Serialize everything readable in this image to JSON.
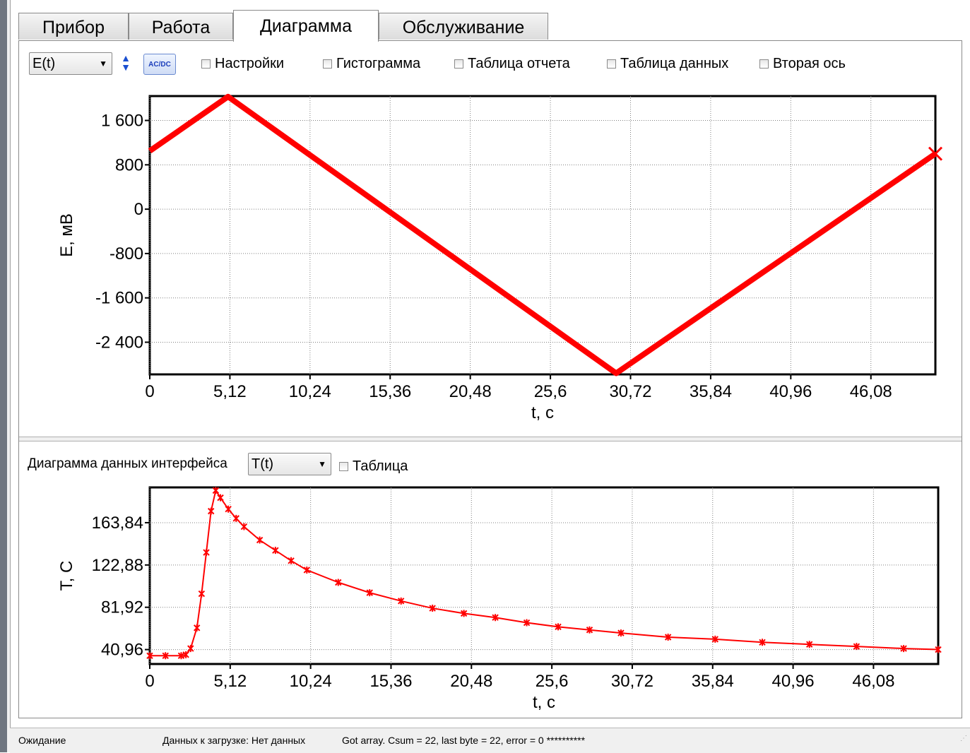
{
  "tabs": [
    {
      "label": "Прибор"
    },
    {
      "label": "Работа"
    },
    {
      "label": "Диаграмма",
      "active": true
    },
    {
      "label": "Обслуживание"
    }
  ],
  "toolbar": {
    "mode_select": "E(t)",
    "acdc_label": "AC/DC",
    "checkboxes": [
      {
        "label": "Настройки",
        "checked": false
      },
      {
        "label": "Гистограмма",
        "checked": false
      },
      {
        "label": "Таблица отчета",
        "checked": false
      },
      {
        "label": "Таблица данных",
        "checked": false
      },
      {
        "label": "Вторая ось",
        "checked": false
      }
    ]
  },
  "lower": {
    "label": "Диаграмма данных интерфейса",
    "select": "T(t)",
    "table_checkbox": "Таблица"
  },
  "status": {
    "state": "Ожидание",
    "download": "Данных к загрузке: Нет данных",
    "message": "Got array. Csum = 22, last byte = 22, error = 0 **********"
  },
  "colors": {
    "series": "#ff0000",
    "grid": "#808080",
    "axis": "#000000"
  },
  "chart_data": [
    {
      "type": "line",
      "xlabel": "t, c",
      "ylabel": "E, мВ",
      "xticks": [
        "0",
        "5,12",
        "10,24",
        "15,36",
        "20,48",
        "25,6",
        "30,72",
        "35,84",
        "40,96",
        "46,08"
      ],
      "xtick_values": [
        0,
        5.12,
        10.24,
        15.36,
        20.48,
        25.6,
        30.72,
        35.84,
        40.96,
        46.08
      ],
      "yticks": [
        "1 600",
        "800",
        "0",
        "-800",
        "-1 600",
        "-2 400"
      ],
      "ytick_values": [
        1600,
        800,
        0,
        -800,
        -1600,
        -2400
      ],
      "xlim": [
        0,
        50.2
      ],
      "ylim": [
        -2980,
        2040
      ],
      "series": [
        {
          "x": [
            0,
            5,
            29.8,
            50.2
          ],
          "values": [
            1050,
            2030,
            -2960,
            1000
          ]
        }
      ]
    },
    {
      "type": "line",
      "xlabel": "t, c",
      "ylabel": "T, C",
      "xticks": [
        "0",
        "5,12",
        "10,24",
        "15,36",
        "20,48",
        "25,6",
        "30,72",
        "35,84",
        "40,96",
        "46,08"
      ],
      "xtick_values": [
        0,
        5.12,
        10.24,
        15.36,
        20.48,
        25.6,
        30.72,
        35.84,
        40.96,
        46.08
      ],
      "yticks": [
        "163,84",
        "122,88",
        "81,92",
        "40,96"
      ],
      "ytick_values": [
        163.84,
        122.88,
        81.92,
        40.96
      ],
      "xlim": [
        0,
        50.2
      ],
      "ylim": [
        27,
        198
      ],
      "series": [
        {
          "x": [
            0,
            1,
            2,
            2.3,
            2.6,
            3.0,
            3.3,
            3.6,
            3.9,
            4.2,
            4.5,
            5,
            5.5,
            6,
            7,
            8,
            9,
            10,
            12,
            14,
            16,
            18,
            20,
            22,
            24,
            26,
            28,
            30,
            33,
            36,
            39,
            42,
            45,
            48,
            50.2
          ],
          "values": [
            35,
            35,
            35,
            36,
            42,
            62,
            95,
            135,
            175,
            195,
            188,
            177,
            168,
            160,
            147,
            137,
            127,
            118,
            106,
            96,
            88,
            81,
            76,
            72,
            67,
            63,
            60,
            57,
            53,
            51,
            48,
            46,
            44,
            42,
            41
          ]
        }
      ]
    }
  ]
}
